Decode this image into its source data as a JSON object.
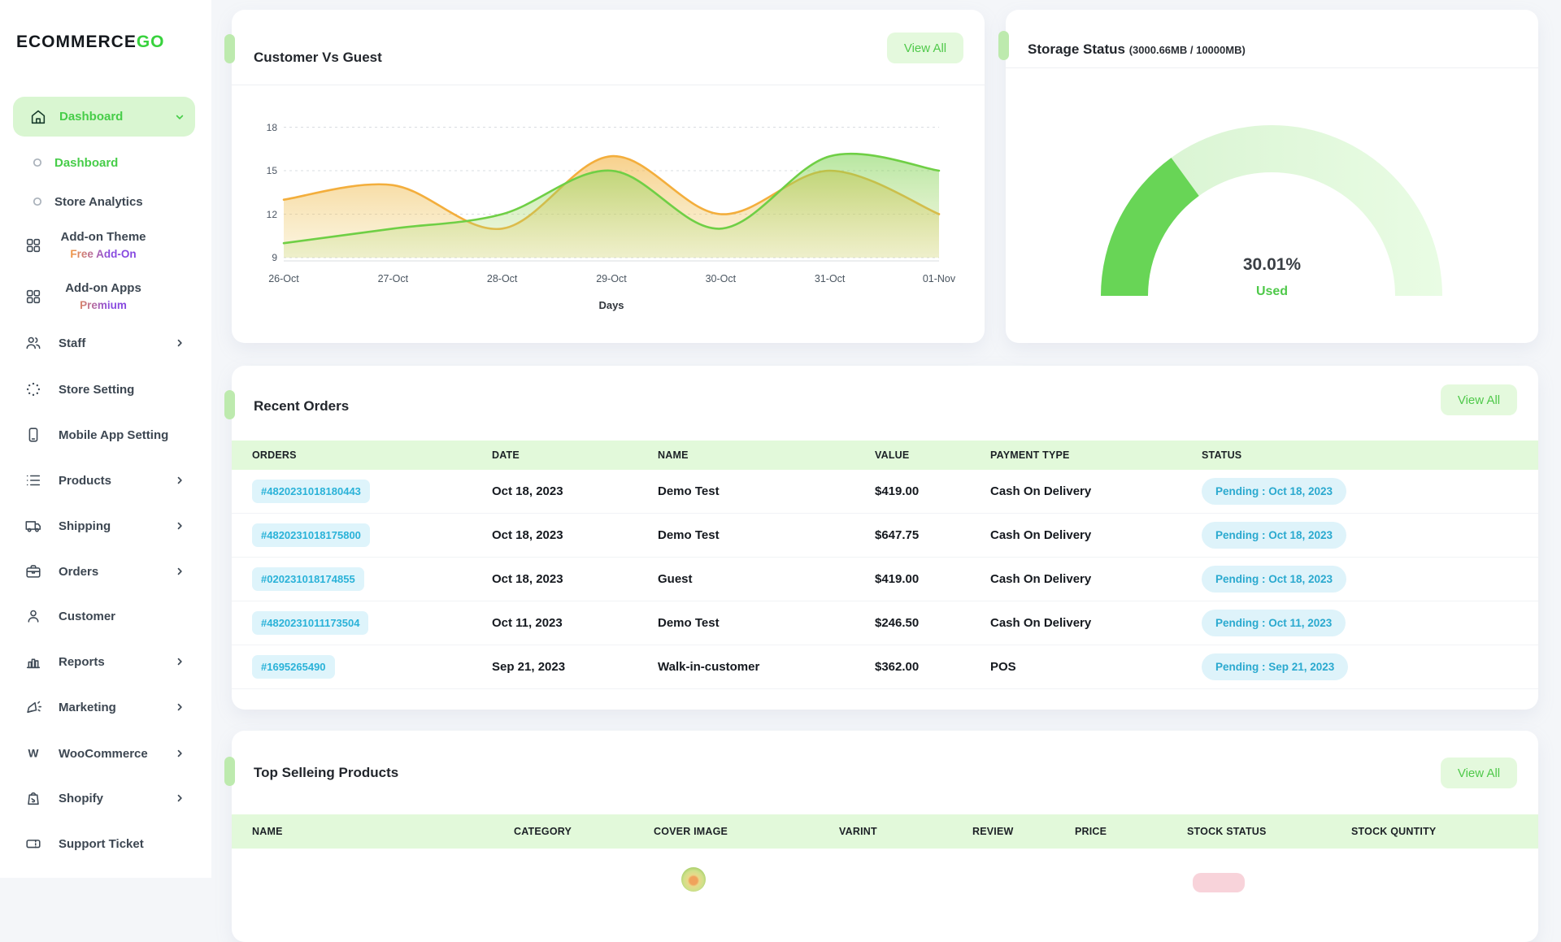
{
  "brand": {
    "name_primary": "ECOMMERCE",
    "name_accent": "GO"
  },
  "accent_colors": {
    "green": "#47cd49",
    "green_pill_bg": "#d9f6d1",
    "view_all_bg": "#e4f9dd",
    "table_header_bg": "#e2f9da",
    "order_pill_bg": "#def4fb",
    "order_pill_text": "#2ab2d8",
    "status_pill_bg": "#def3fa",
    "status_pill_text": "#2aa9cf",
    "gauge_fill": "#68d556",
    "gauge_track": "#ddf6d7",
    "stock_badge_bg": "#f8d3da"
  },
  "sidebar": {
    "items": [
      {
        "label": "Dashboard",
        "icon": "home",
        "kind": "pill",
        "chevron": "down"
      },
      {
        "label": "Dashboard",
        "icon": "ring",
        "kind": "sub",
        "active": true
      },
      {
        "label": "Store Analytics",
        "icon": "ring",
        "kind": "sub"
      },
      {
        "label": "Add-on Theme",
        "sublabel": "Free Add-On",
        "icon": "grid",
        "kind": "two"
      },
      {
        "label": "Add-on Apps",
        "sublabel": "Premium",
        "icon": "grid",
        "kind": "two"
      },
      {
        "label": "Staff",
        "icon": "users",
        "chevron": "right"
      },
      {
        "label": "Store Setting",
        "icon": "loader"
      },
      {
        "label": "Mobile App Setting",
        "icon": "smartphone"
      },
      {
        "label": "Products",
        "icon": "list",
        "chevron": "right"
      },
      {
        "label": "Shipping",
        "icon": "truck",
        "chevron": "right"
      },
      {
        "label": "Orders",
        "icon": "briefcase",
        "chevron": "right"
      },
      {
        "label": "Customer",
        "icon": "user"
      },
      {
        "label": "Reports",
        "icon": "bar-chart",
        "chevron": "right"
      },
      {
        "label": "Marketing",
        "icon": "megaphone",
        "chevron": "right"
      },
      {
        "label": "WooCommerce",
        "icon": "woocommerce",
        "chevron": "right"
      },
      {
        "label": "Shopify",
        "icon": "shopify",
        "chevron": "right"
      },
      {
        "label": "Support Ticket",
        "icon": "ticket"
      }
    ]
  },
  "customer_vs_guest": {
    "title": "Customer Vs Guest",
    "view_all": "View All",
    "xlabel": "Days"
  },
  "storage": {
    "title": "Storage Status",
    "subtitle": "(3000.66MB / 10000MB)",
    "percent_label": "30.01%",
    "used_label": "Used"
  },
  "chart_data": [
    {
      "type": "area",
      "title": "Customer Vs Guest",
      "x": [
        "26-Oct",
        "27-Oct",
        "28-Oct",
        "29-Oct",
        "30-Oct",
        "31-Oct",
        "01-Nov"
      ],
      "series": [
        {
          "name": "Customer",
          "color": "#f3ae3c",
          "values": [
            13,
            14,
            11,
            16,
            12,
            15,
            12
          ]
        },
        {
          "name": "Guest",
          "color": "#6fcf45",
          "values": [
            10,
            11,
            12,
            15,
            11,
            16,
            15
          ]
        }
      ],
      "xlabel": "Days",
      "ylabel": "",
      "ylim": [
        9,
        18
      ],
      "yticks": [
        9,
        12,
        15,
        18
      ],
      "grid": "dashed-horizontal",
      "legend": "none"
    },
    {
      "type": "gauge",
      "title": "Storage Status",
      "value_percent": 30.01,
      "label": "Used",
      "used_mb": 3000.66,
      "total_mb": 10000
    }
  ],
  "recent_orders": {
    "title": "Recent Orders",
    "view_all": "View All",
    "columns": [
      "ORDERS",
      "DATE",
      "NAME",
      "VALUE",
      "PAYMENT TYPE",
      "STATUS"
    ],
    "rows": [
      {
        "order_id": "#4820231018180443",
        "date": "Oct 18, 2023",
        "name": "Demo Test",
        "value": "$419.00",
        "payment": "Cash On Delivery",
        "status": "Pending : Oct 18, 2023"
      },
      {
        "order_id": "#4820231018175800",
        "date": "Oct 18, 2023",
        "name": "Demo Test",
        "value": "$647.75",
        "payment": "Cash On Delivery",
        "status": "Pending : Oct 18, 2023"
      },
      {
        "order_id": "#020231018174855",
        "date": "Oct 18, 2023",
        "name": "Guest",
        "value": "$419.00",
        "payment": "Cash On Delivery",
        "status": "Pending : Oct 18, 2023"
      },
      {
        "order_id": "#4820231011173504",
        "date": "Oct 11, 2023",
        "name": "Demo Test",
        "value": "$246.50",
        "payment": "Cash On Delivery",
        "status": "Pending : Oct 11, 2023"
      },
      {
        "order_id": "#1695265490",
        "date": "Sep 21, 2023",
        "name": "Walk-in-customer",
        "value": "$362.00",
        "payment": "POS",
        "status": "Pending : Sep 21, 2023"
      }
    ]
  },
  "top_selling": {
    "title": "Top Selleing Products",
    "view_all": "View All",
    "columns": [
      "NAME",
      "CATEGORY",
      "COVER IMAGE",
      "VARINT",
      "REVIEW",
      "PRICE",
      "STOCK STATUS",
      "STOCK QUNTITY"
    ]
  }
}
